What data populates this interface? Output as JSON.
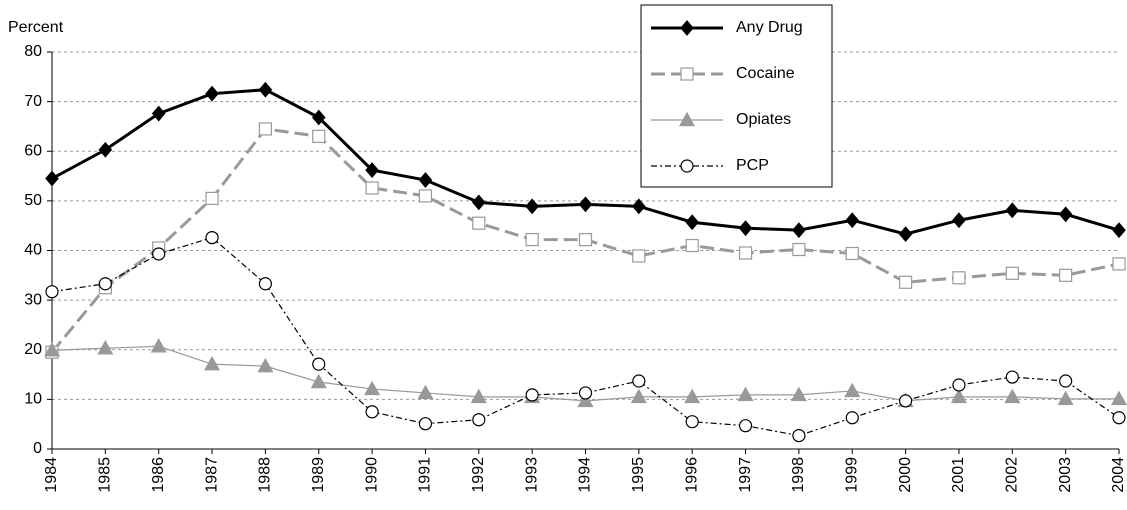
{
  "chart_data": {
    "type": "line",
    "y_axis_label": "Percent",
    "categories": [
      "1984",
      "1985",
      "1986",
      "1987",
      "1988",
      "1989",
      "1990",
      "1991",
      "1992",
      "1993",
      "1994",
      "1995",
      "1996",
      "1997",
      "1998",
      "1999",
      "2000",
      "2001",
      "2002",
      "2003",
      "2004"
    ],
    "series": [
      {
        "name": "Any Drug",
        "color": "#000000",
        "marker": "diamond",
        "values": [
          54.5,
          60.3,
          67.6,
          71.6,
          72.4,
          66.8,
          56.2,
          54.2,
          49.7,
          48.9,
          49.3,
          48.9,
          45.7,
          44.5,
          44.1,
          46.1,
          43.3,
          46.1,
          48.1,
          47.3,
          44.1
        ]
      },
      {
        "name": "Cocaine",
        "color": "#999999",
        "marker": "square",
        "values": [
          19.5,
          32.5,
          40.5,
          50.5,
          64.5,
          63,
          52.6,
          51,
          45.5,
          42.2,
          42.2,
          38.9,
          41,
          39.5,
          40.2,
          39.4,
          33.6,
          34.5,
          35.4,
          35,
          37.3
        ]
      },
      {
        "name": "Opiates",
        "color": "#999999",
        "marker": "triangle",
        "values": [
          19.9,
          20.3,
          20.7,
          17.1,
          16.7,
          13.5,
          12.1,
          11.3,
          10.5,
          10.5,
          9.7,
          10.5,
          10.5,
          10.9,
          10.9,
          11.7,
          9.7,
          10.5,
          10.5,
          10.1,
          10.1
        ]
      },
      {
        "name": "PCP",
        "color": "#000000",
        "marker": "circle",
        "values": [
          31.7,
          33.3,
          39.3,
          42.6,
          33.3,
          17.1,
          7.5,
          5.1,
          5.9,
          10.9,
          11.3,
          13.7,
          5.5,
          4.7,
          2.7,
          6.3,
          9.7,
          12.9,
          14.5,
          13.7,
          6.3
        ]
      }
    ],
    "ylim": [
      0,
      80
    ],
    "yticks": [
      0,
      10,
      20,
      30,
      40,
      50,
      60,
      70,
      80
    ],
    "grid": true,
    "legend": "top"
  }
}
